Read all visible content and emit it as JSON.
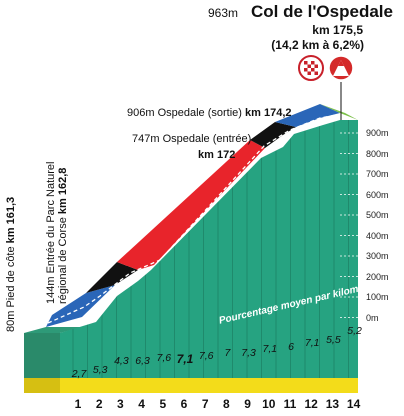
{
  "summit": {
    "altitude": "963m",
    "name": "Col de l'Ospedale",
    "km": "km 175,5",
    "detail": "(14,2 km à 6,2%)"
  },
  "waypoints": {
    "sortie": {
      "altitude": "906m Ospedale (sortie)",
      "km": "km 174,2"
    },
    "entree": {
      "altitude": "747m Ospedale (entrée)",
      "km": "km 172"
    },
    "parc": {
      "line1": "144m Entrée du Parc Naturel",
      "line2": "régional de Corse",
      "km": "km 162,8"
    },
    "pied": {
      "text": "80m Pied de côte",
      "km": "km 161,3"
    }
  },
  "altitude_axis": [
    "900m",
    "800m",
    "700m",
    "600m",
    "500m",
    "400m",
    "300m",
    "200m",
    "100m",
    "0m"
  ],
  "legend": "Pourcentage moyen par kilomètre",
  "km_markers": [
    "1",
    "2",
    "3",
    "4",
    "5",
    "6",
    "7",
    "8",
    "9",
    "10",
    "11",
    "12",
    "13",
    "14"
  ],
  "gradients": [
    "2,7",
    "5,3",
    "4,3",
    "6,3",
    "7,6",
    "7,1",
    "7,6",
    "7",
    "7,3",
    "7,1",
    "6",
    "7,1",
    "5,5",
    "5,2"
  ],
  "icons": [
    "checkered-flag-icon",
    "mountain-climb-icon"
  ],
  "colors": {
    "face": "#26a381",
    "road_blue": "#2a66b8",
    "road_red": "#e8242b",
    "road_black": "#111111",
    "road_green": "#7cc04a",
    "base_yellow": "#f3dc1a",
    "climb_red": "#e0302a"
  }
}
